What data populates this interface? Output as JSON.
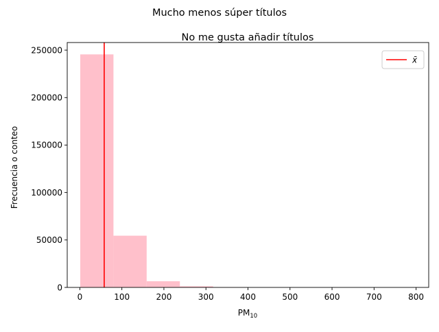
{
  "chart_data": {
    "type": "bar",
    "suptitle": "Mucho menos súper títulos",
    "title": "No me gusta añadir títulos",
    "xlabel": "PM",
    "xlabel_sub": "10",
    "ylabel": "Frecuencia o conteo",
    "xlim": [
      -30,
      830
    ],
    "ylim": [
      0,
      258000
    ],
    "x_ticks": [
      0,
      100,
      200,
      300,
      400,
      500,
      600,
      700,
      800
    ],
    "y_ticks": [
      0,
      50000,
      100000,
      150000,
      200000,
      250000
    ],
    "bin_edges": [
      1,
      80,
      159,
      238,
      317,
      396,
      475,
      554,
      633,
      712,
      791
    ],
    "values": [
      245500,
      54500,
      6500,
      1200,
      250,
      60,
      20,
      8,
      4,
      2
    ],
    "bar_color": "#ffc0cb",
    "mean": 58,
    "mean_color": "#ff0000",
    "legend": {
      "label": "x̄",
      "position": "top-right"
    },
    "grid": false
  }
}
